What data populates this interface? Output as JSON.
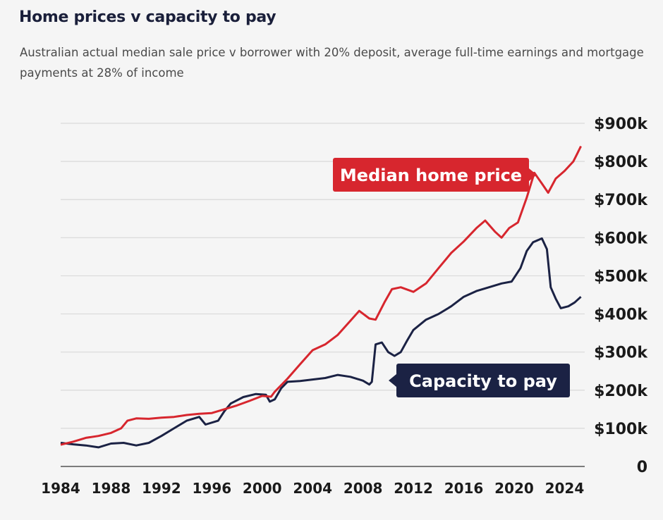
{
  "header": {
    "title": "Home prices v capacity to pay",
    "subtitle": "Australian actual median sale price v borrower with 20% deposit, average full-time earnings and mortgage payments at 28% of income"
  },
  "colors": {
    "price": "#d7262e",
    "capacity": "#1b2244",
    "grid": "#d9d9d9"
  },
  "chart_data": {
    "type": "line",
    "title": "Home prices v capacity to pay",
    "xlim": [
      1984,
      2025.6
    ],
    "ylim": [
      0,
      900
    ],
    "x_ticks": [
      1984,
      1988,
      1992,
      1996,
      2000,
      2004,
      2008,
      2012,
      2016,
      2020,
      2024
    ],
    "x_tick_labels": [
      "1984",
      "1988",
      "1992",
      "1996",
      "2000",
      "2004",
      "2008",
      "2012",
      "2016",
      "2020",
      "2024"
    ],
    "y_ticks": [
      0,
      100,
      200,
      300,
      400,
      500,
      600,
      700,
      800,
      900
    ],
    "y_tick_labels": [
      "0",
      "$100k",
      "$200k",
      "$300k",
      "$400k",
      "$500k",
      "$600k",
      "$700k",
      "$800k",
      "$900k"
    ],
    "y_axis_side": "right",
    "grid": true,
    "series": [
      {
        "name": "Median home price",
        "color": "#d7262e",
        "points": [
          [
            1984.0,
            57
          ],
          [
            1985.0,
            65
          ],
          [
            1986.0,
            75
          ],
          [
            1987.0,
            80
          ],
          [
            1988.0,
            88
          ],
          [
            1988.8,
            100
          ],
          [
            1989.3,
            120
          ],
          [
            1990.0,
            126
          ],
          [
            1991.0,
            125
          ],
          [
            1992.0,
            128
          ],
          [
            1993.0,
            130
          ],
          [
            1994.0,
            135
          ],
          [
            1995.0,
            138
          ],
          [
            1996.0,
            140
          ],
          [
            1997.0,
            150
          ],
          [
            1998.0,
            160
          ],
          [
            1999.0,
            172
          ],
          [
            2000.0,
            185
          ],
          [
            2000.7,
            183
          ],
          [
            2001.0,
            196
          ],
          [
            2002.0,
            230
          ],
          [
            2003.0,
            268
          ],
          [
            2004.0,
            305
          ],
          [
            2005.0,
            320
          ],
          [
            2006.0,
            345
          ],
          [
            2007.0,
            382
          ],
          [
            2007.7,
            408
          ],
          [
            2008.5,
            388
          ],
          [
            2009.0,
            385
          ],
          [
            2009.7,
            430
          ],
          [
            2010.3,
            465
          ],
          [
            2011.0,
            470
          ],
          [
            2012.0,
            458
          ],
          [
            2013.0,
            480
          ],
          [
            2014.0,
            520
          ],
          [
            2015.0,
            560
          ],
          [
            2016.0,
            590
          ],
          [
            2017.0,
            625
          ],
          [
            2017.7,
            645
          ],
          [
            2018.5,
            615
          ],
          [
            2019.0,
            600
          ],
          [
            2019.6,
            625
          ],
          [
            2020.3,
            640
          ],
          [
            2021.0,
            705
          ],
          [
            2021.6,
            770
          ],
          [
            2022.2,
            742
          ],
          [
            2022.7,
            718
          ],
          [
            2023.3,
            755
          ],
          [
            2024.0,
            775
          ],
          [
            2024.7,
            800
          ],
          [
            2025.0,
            820
          ],
          [
            2025.3,
            840
          ]
        ]
      },
      {
        "name": "Capacity to pay",
        "color": "#1b2244",
        "points": [
          [
            1984.0,
            62
          ],
          [
            1985.0,
            58
          ],
          [
            1986.0,
            55
          ],
          [
            1987.0,
            50
          ],
          [
            1988.0,
            60
          ],
          [
            1989.0,
            62
          ],
          [
            1990.0,
            55
          ],
          [
            1991.0,
            62
          ],
          [
            1992.0,
            80
          ],
          [
            1993.0,
            100
          ],
          [
            1994.0,
            120
          ],
          [
            1995.0,
            130
          ],
          [
            1995.5,
            110
          ],
          [
            1996.5,
            120
          ],
          [
            1997.0,
            145
          ],
          [
            1997.5,
            165
          ],
          [
            1998.5,
            182
          ],
          [
            1999.5,
            190
          ],
          [
            2000.3,
            188
          ],
          [
            2000.6,
            170
          ],
          [
            2001.0,
            176
          ],
          [
            2001.5,
            205
          ],
          [
            2002.0,
            222
          ],
          [
            2003.0,
            224
          ],
          [
            2004.0,
            228
          ],
          [
            2005.0,
            232
          ],
          [
            2006.0,
            240
          ],
          [
            2007.0,
            235
          ],
          [
            2008.0,
            225
          ],
          [
            2008.5,
            215
          ],
          [
            2008.7,
            222
          ],
          [
            2009.0,
            320
          ],
          [
            2009.5,
            325
          ],
          [
            2010.0,
            300
          ],
          [
            2010.5,
            290
          ],
          [
            2011.0,
            300
          ],
          [
            2011.5,
            330
          ],
          [
            2012.0,
            358
          ],
          [
            2013.0,
            385
          ],
          [
            2014.0,
            400
          ],
          [
            2015.0,
            420
          ],
          [
            2016.0,
            445
          ],
          [
            2017.0,
            460
          ],
          [
            2018.0,
            470
          ],
          [
            2019.0,
            480
          ],
          [
            2019.8,
            485
          ],
          [
            2020.5,
            520
          ],
          [
            2021.0,
            565
          ],
          [
            2021.5,
            588
          ],
          [
            2022.2,
            598
          ],
          [
            2022.6,
            570
          ],
          [
            2022.9,
            470
          ],
          [
            2023.3,
            440
          ],
          [
            2023.7,
            415
          ],
          [
            2024.3,
            420
          ],
          [
            2024.8,
            430
          ],
          [
            2025.3,
            445
          ]
        ]
      }
    ],
    "annotations": [
      {
        "text": "Median home price",
        "series": "Median home price",
        "near_x": 2021.6
      },
      {
        "text": "Capacity to pay",
        "series": "Capacity to pay",
        "near_x": 2008.7
      }
    ]
  }
}
